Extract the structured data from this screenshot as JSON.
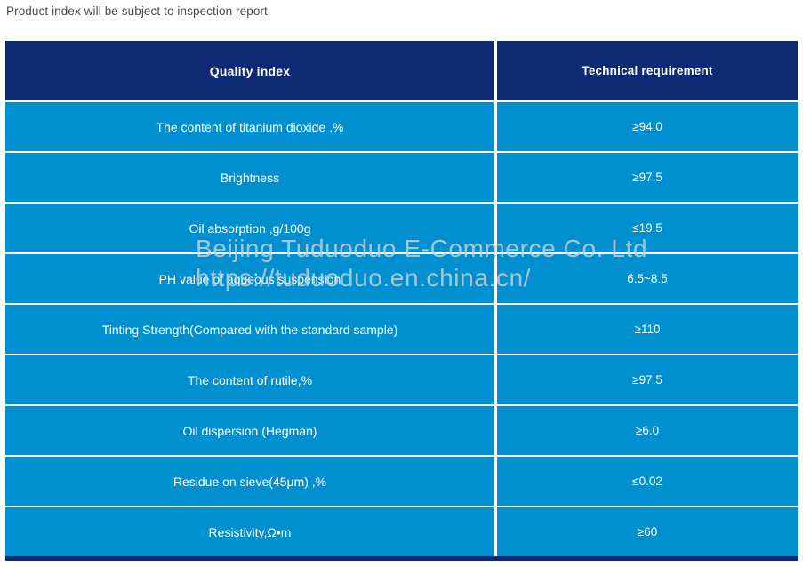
{
  "page": {
    "caption": "Product index will be subject to inspection report"
  },
  "table": {
    "headers": [
      "Quality index",
      "Technical requirement"
    ],
    "rows": [
      {
        "label": "The content of titanium dioxide ,%",
        "value": "≥94.0"
      },
      {
        "label": "Brightness",
        "value": "≥97.5"
      },
      {
        "label": "Oil absorption ,g/100g",
        "value": "≤19.5"
      },
      {
        "label": "PH value of aqueous suspension",
        "value": "6.5~8.5"
      },
      {
        "label": "Tinting Strength(Compared with the standard sample)",
        "value": "≥110"
      },
      {
        "label": "The content of rutile,%",
        "value": "≥97.5"
      },
      {
        "label": "Oil dispersion (Hegman)",
        "value": "≥6.0"
      },
      {
        "label": "Residue on sieve(45μm) ,%",
        "value": "≤0.02"
      },
      {
        "label": "Resistivity,Ω•m",
        "value": "≥60"
      }
    ]
  },
  "watermark": {
    "line1": "Beijing Tuduoduo E-Commerce Co. Ltd",
    "line2": "https://tuduoduo.en.china.cn/"
  },
  "colors": {
    "header_bg": "#0e2a72",
    "row_bg": "#0090d0",
    "caption_text": "#4b4b52",
    "watermark_text": "#c3d0da"
  }
}
